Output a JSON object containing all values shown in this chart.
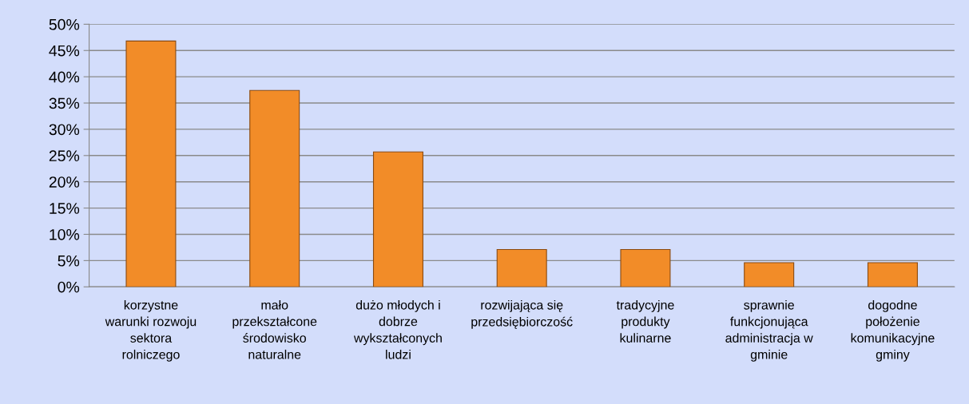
{
  "chart_data": {
    "type": "bar",
    "categories": [
      "korzystne\nwarunki rozwoju\nsektora\nrolniczego",
      "mało\nprzekształcone\nśrodowisko\nnaturalne",
      "dużo młodych i\ndobrze\nwykształconych\nludzi",
      "rozwijająca się\nprzedsiębiorczość",
      "tradycyjne\nprodukty\nkulinarne",
      "sprawnie\nfunkcjonująca\nadministracja w\ngminie",
      "dogodne\npołożenie\nkomunikacyjne\ngminy"
    ],
    "values": [
      46.8,
      37.4,
      25.7,
      7.1,
      7.1,
      4.6,
      4.6
    ],
    "color": "#f28c28",
    "ylim": [
      0,
      50
    ],
    "yticks": [
      {
        "value": 0,
        "label": "0%"
      },
      {
        "value": 5,
        "label": "5%"
      },
      {
        "value": 10,
        "label": "10%"
      },
      {
        "value": 15,
        "label": "15%"
      },
      {
        "value": 20,
        "label": "20%"
      },
      {
        "value": 25,
        "label": "25%"
      },
      {
        "value": 30,
        "label": "30%"
      },
      {
        "value": 35,
        "label": "35%"
      },
      {
        "value": 40,
        "label": "40%"
      },
      {
        "value": 45,
        "label": "45%"
      },
      {
        "value": 50,
        "label": "50%"
      }
    ],
    "grid": "y",
    "legend": false
  }
}
